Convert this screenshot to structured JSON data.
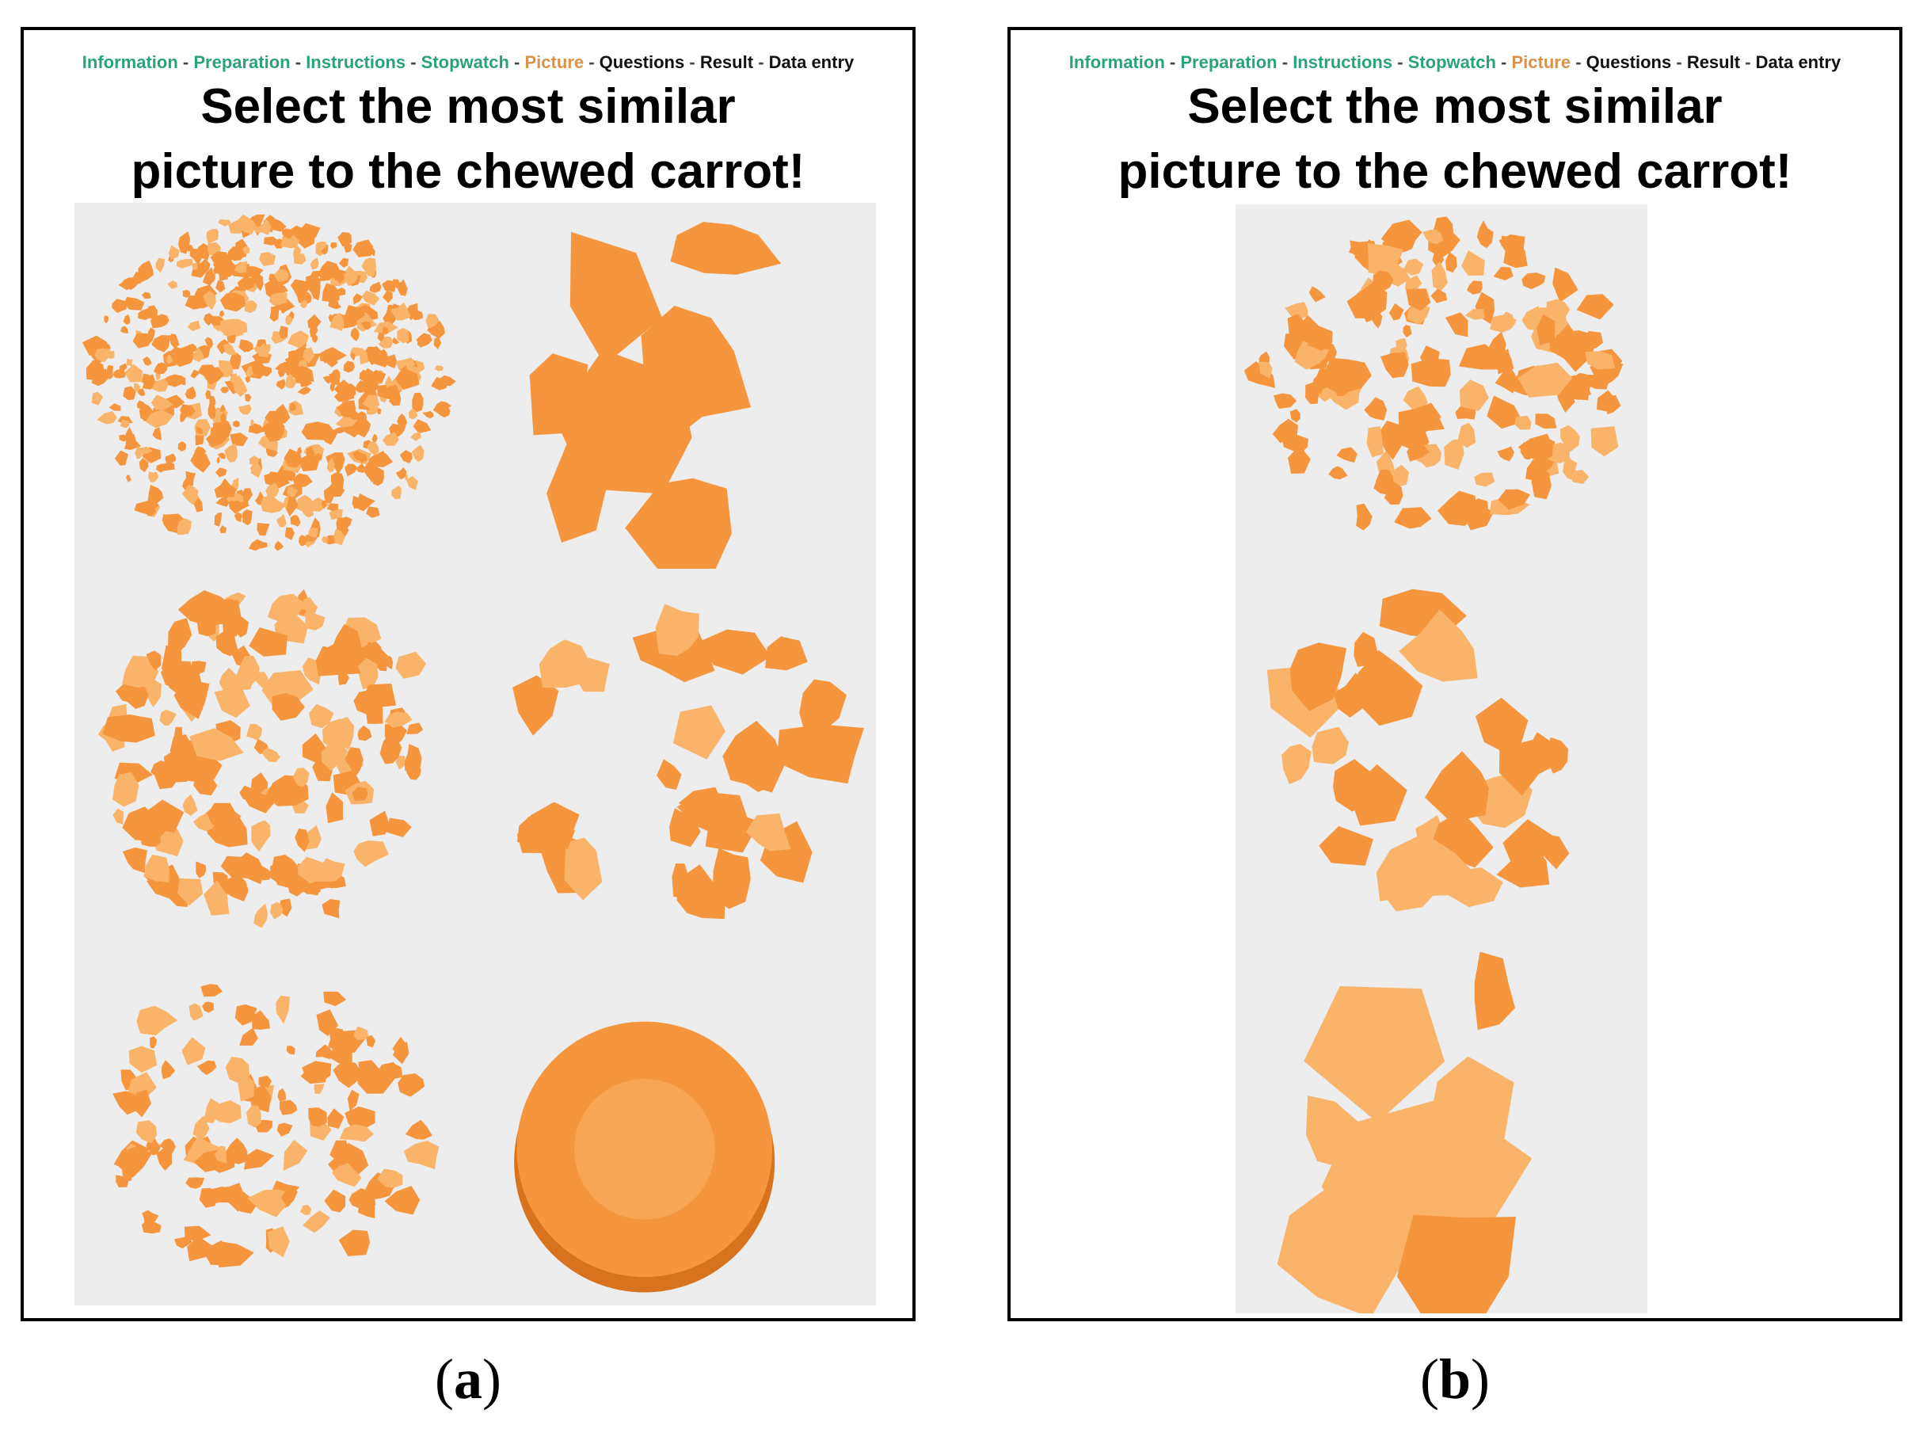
{
  "nav": {
    "separator": "-",
    "items": [
      {
        "label": "Information",
        "color": "#2aa37a"
      },
      {
        "label": "Preparation",
        "color": "#2aa37a"
      },
      {
        "label": "Instructions",
        "color": "#2aa37a"
      },
      {
        "label": "Stopwatch",
        "color": "#2aa37a"
      },
      {
        "label": "Picture",
        "color": "#d9924a"
      },
      {
        "label": "Questions",
        "color": "#111111"
      },
      {
        "label": "Result",
        "color": "#111111"
      },
      {
        "label": "Data entry",
        "color": "#111111"
      }
    ]
  },
  "panel_a": {
    "title_line1": "Select the most similar",
    "title_line2": "picture to the chewed carrot!",
    "caption_open": "(",
    "caption_letter": "a",
    "caption_close": ")"
  },
  "panel_b": {
    "title_line1": "Select the most similar",
    "title_line2": "picture to the chewed carrot!",
    "caption_open": "(",
    "caption_letter": "b",
    "caption_close": ")"
  },
  "colors": {
    "carrot": "#f5963f",
    "carrot_light": "#f9b46a",
    "background": "#ededee"
  }
}
